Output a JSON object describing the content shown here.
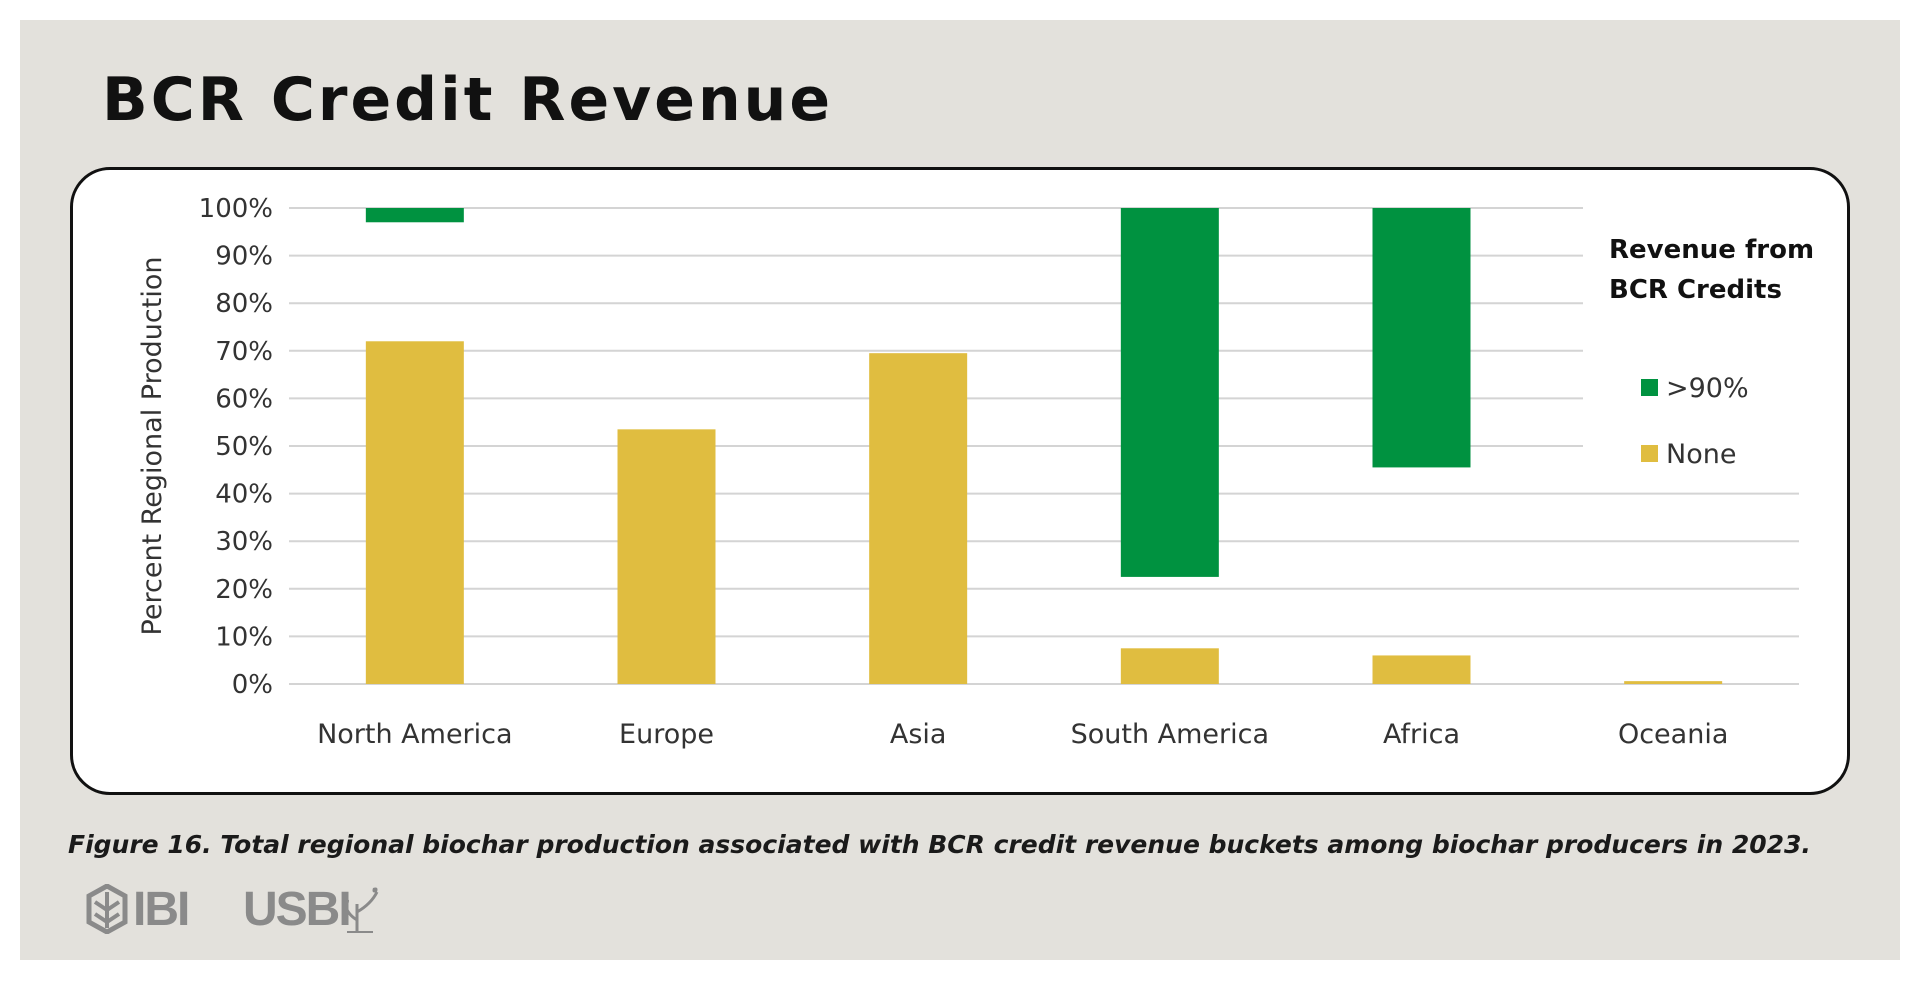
{
  "title": "BCR Credit Revenue",
  "caption": "Figure 16. Total regional biochar production associated with BCR credit revenue buckets among biochar producers in 2023.",
  "logos": {
    "ibi": "IBI",
    "usbi": "USBI"
  },
  "chart_data": {
    "type": "bar",
    "stacked_floating": true,
    "ylabel": "Percent Regional Production",
    "ylim": [
      0,
      100
    ],
    "yticks": [
      "0%",
      "10%",
      "20%",
      "30%",
      "40%",
      "50%",
      "60%",
      "70%",
      "80%",
      "90%",
      "100%"
    ],
    "grid": true,
    "categories": [
      "North America",
      "Europe",
      "Asia",
      "South America",
      "Africa",
      "Oceania"
    ],
    "legend": {
      "title_lines": [
        "Revenue from",
        "BCR Credits"
      ],
      "placement": "right"
    },
    "series": [
      {
        "name": ">90%",
        "color": "#009240",
        "ranges": [
          [
            97,
            100
          ],
          null,
          null,
          [
            22.5,
            100
          ],
          [
            45.5,
            100
          ],
          null
        ]
      },
      {
        "name": "None",
        "color": "#e0bd40",
        "ranges": [
          [
            0,
            72
          ],
          [
            0,
            53.5
          ],
          [
            0,
            69.5
          ],
          [
            0,
            7.5
          ],
          [
            0,
            6
          ],
          [
            0,
            0.6
          ]
        ]
      }
    ]
  }
}
